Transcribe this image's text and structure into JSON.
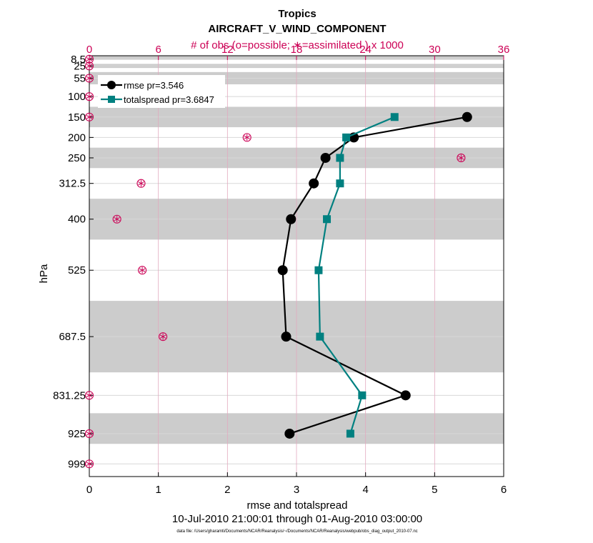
{
  "chart_data": {
    "type": "line",
    "title": "Tropics",
    "subtitle": "AIRCRAFT_V_WIND_COMPONENT",
    "top_axis_label": "# of obs (o=possible; ∗=assimilated ) x 1000",
    "xlabel": "rmse and totalspread",
    "ylabel": "hPa",
    "time_range": "10-Jul-2010 21:00:01 through 01-Aug-2010 03:00:00",
    "footnote": "data file: /Users/gharamti/Documents/NCAR/Reanalysis/~/Documents/NCAR/Reanalysis/webpub/obs_diag_output_2010-07.nc",
    "xlim": [
      0,
      6
    ],
    "x_ticks": [
      "0",
      "1",
      "2",
      "3",
      "4",
      "5",
      "6"
    ],
    "top_xlim": [
      0,
      36
    ],
    "top_ticks": [
      "0",
      "6",
      "12",
      "18",
      "24",
      "30",
      "36"
    ],
    "levels": [
      {
        "label": "8.5",
        "value": 8.5
      },
      {
        "label": "25",
        "value": 25
      },
      {
        "label": "55",
        "value": 55
      },
      {
        "label": "100",
        "value": 100
      },
      {
        "label": "150",
        "value": 150
      },
      {
        "label": "200",
        "value": 200
      },
      {
        "label": "250",
        "value": 250
      },
      {
        "label": "312.5",
        "value": 312.5
      },
      {
        "label": "400",
        "value": 400
      },
      {
        "label": "525",
        "value": 525
      },
      {
        "label": "687.5",
        "value": 687.5
      },
      {
        "label": "831.25",
        "value": 831.25
      },
      {
        "label": "925",
        "value": 925
      },
      {
        "label": "999",
        "value": 999
      }
    ],
    "ylim": [
      0,
      1030
    ],
    "shaded_layers": [
      [
        0,
        10
      ],
      [
        20,
        30
      ],
      [
        40,
        70
      ],
      [
        125,
        175
      ],
      [
        225,
        275
      ],
      [
        350,
        450
      ],
      [
        600,
        775
      ],
      [
        875,
        950
      ]
    ],
    "series": [
      {
        "name": "rmse pr=3.546",
        "color": "#000000",
        "marker": "circle",
        "points": [
          {
            "x": 5.47,
            "y": 150
          },
          {
            "x": 3.83,
            "y": 200
          },
          {
            "x": 3.42,
            "y": 250
          },
          {
            "x": 3.25,
            "y": 312.5
          },
          {
            "x": 2.92,
            "y": 400
          },
          {
            "x": 2.8,
            "y": 525
          },
          {
            "x": 2.85,
            "y": 687.5
          },
          {
            "x": 4.58,
            "y": 831.25
          },
          {
            "x": 2.9,
            "y": 925
          }
        ]
      },
      {
        "name": "totalspread pr=3.6847",
        "color": "#008080",
        "marker": "square",
        "points": [
          {
            "x": 4.42,
            "y": 150
          },
          {
            "x": 3.72,
            "y": 200
          },
          {
            "x": 3.63,
            "y": 250
          },
          {
            "x": 3.63,
            "y": 312.5
          },
          {
            "x": 3.44,
            "y": 400
          },
          {
            "x": 3.32,
            "y": 525
          },
          {
            "x": 3.34,
            "y": 687.5
          },
          {
            "x": 3.95,
            "y": 831.25
          },
          {
            "x": 3.78,
            "y": 925
          }
        ]
      }
    ],
    "obs_counts": {
      "color": "#cc0055",
      "points": [
        {
          "x": 0,
          "y": 8.5
        },
        {
          "x": 0,
          "y": 25
        },
        {
          "x": 0,
          "y": 55
        },
        {
          "x": 0,
          "y": 100
        },
        {
          "x": 0,
          "y": 150
        },
        {
          "x": 13.7,
          "y": 200
        },
        {
          "x": 32.3,
          "y": 250
        },
        {
          "x": 4.5,
          "y": 312.5
        },
        {
          "x": 2.4,
          "y": 400
        },
        {
          "x": 4.6,
          "y": 525
        },
        {
          "x": 6.4,
          "y": 687.5
        },
        {
          "x": 0,
          "y": 831.25
        },
        {
          "x": 0,
          "y": 925
        },
        {
          "x": 0,
          "y": 999
        }
      ]
    }
  }
}
